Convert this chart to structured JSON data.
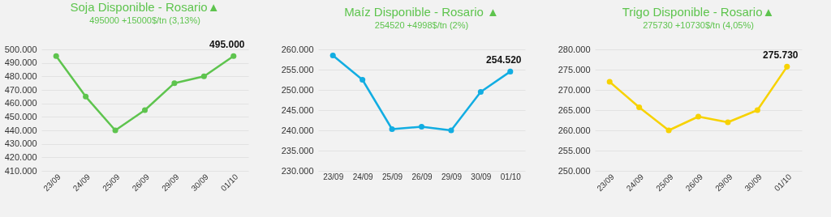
{
  "chart_data": [
    {
      "type": "line",
      "title": "Soja Disponible - Rosario▲",
      "subtitle": "495000 +15000$/tn (3,13%)",
      "categories": [
        "23/09",
        "24/09",
        "25/09",
        "26/09",
        "29/09",
        "30/09",
        "01/10"
      ],
      "values": [
        495000,
        465000,
        440000,
        455000,
        475000,
        480000,
        495000
      ],
      "color": "#5ec44e",
      "marker": "circle",
      "grid": "y",
      "ylim": [
        410000,
        500000
      ],
      "yticks": [
        {
          "value": 410000,
          "label": "410.000"
        },
        {
          "value": 420000,
          "label": "420.000"
        },
        {
          "value": 430000,
          "label": "430.000"
        },
        {
          "value": 440000,
          "label": "440.000"
        },
        {
          "value": 450000,
          "label": "450.000"
        },
        {
          "value": 460000,
          "label": "460.000"
        },
        {
          "value": 470000,
          "label": "470.000"
        },
        {
          "value": 480000,
          "label": "480.000"
        },
        {
          "value": 490000,
          "label": "490.000"
        },
        {
          "value": 500000,
          "label": "500.000"
        }
      ],
      "annotations": [
        {
          "text": "495.000",
          "x": "01/10",
          "y": 495000
        }
      ]
    },
    {
      "type": "line",
      "title": "Maíz Disponible - Rosario ▲",
      "subtitle": "254520 +4998$/tn (2%)",
      "categories": [
        "23/09",
        "24/09",
        "25/09",
        "26/09",
        "29/09",
        "30/09",
        "01/10"
      ],
      "values": [
        258500,
        252500,
        240300,
        240900,
        240000,
        249500,
        254520
      ],
      "color": "#12ade2",
      "marker": "circle",
      "grid": "y",
      "ylim": [
        230000,
        260000
      ],
      "yticks": [
        {
          "value": 230000,
          "label": "230.000"
        },
        {
          "value": 235000,
          "label": "235.000"
        },
        {
          "value": 240000,
          "label": "240.000"
        },
        {
          "value": 245000,
          "label": "245.000"
        },
        {
          "value": 250000,
          "label": "250.000"
        },
        {
          "value": 255000,
          "label": "255.000"
        },
        {
          "value": 260000,
          "label": "260.000"
        }
      ],
      "annotations": [
        {
          "text": "254.520",
          "x": "01/10",
          "y": 254520
        }
      ]
    },
    {
      "type": "line",
      "title": "Trigo Disponible - Rosario▲",
      "subtitle": "275730 +10730$/tn (4,05%)",
      "categories": [
        "23/09",
        "24/09",
        "25/09",
        "26/09",
        "29/09",
        "30/09",
        "01/10"
      ],
      "values": [
        272000,
        265700,
        260000,
        263400,
        262000,
        265000,
        275730
      ],
      "color": "#f7d200",
      "marker": "circle",
      "grid": "y",
      "ylim": [
        250000,
        280000
      ],
      "yticks": [
        {
          "value": 250000,
          "label": "250.000"
        },
        {
          "value": 255000,
          "label": "255.000"
        },
        {
          "value": 260000,
          "label": "260.000"
        },
        {
          "value": 265000,
          "label": "265.000"
        },
        {
          "value": 270000,
          "label": "270.000"
        },
        {
          "value": 275000,
          "label": "275.000"
        },
        {
          "value": 280000,
          "label": "280.000"
        }
      ],
      "annotations": [
        {
          "text": "275.730",
          "x": "01/10",
          "y": 275730
        }
      ]
    }
  ]
}
